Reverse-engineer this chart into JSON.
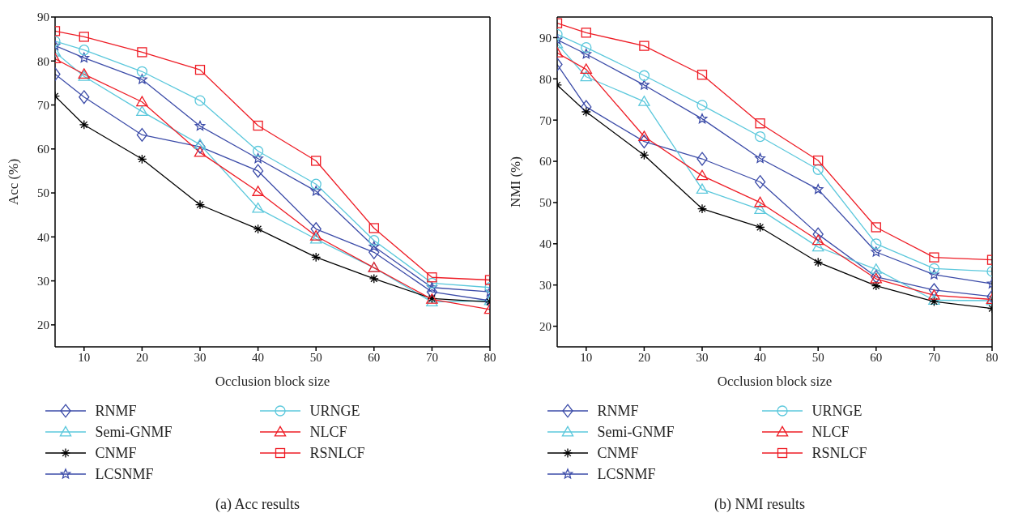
{
  "chart_data": [
    {
      "type": "line",
      "title": "(a) Acc results",
      "xlabel": "Occlusion block size",
      "ylabel": "Acc (%)",
      "x": [
        5,
        10,
        20,
        30,
        40,
        50,
        60,
        70,
        80
      ],
      "xlim": [
        5,
        80
      ],
      "xticks": [
        10,
        20,
        30,
        40,
        50,
        60,
        70,
        80
      ],
      "ylim": [
        15,
        90
      ],
      "yticks": [
        20,
        30,
        40,
        50,
        60,
        70,
        80,
        90
      ],
      "grid": false,
      "legend": "bottom",
      "series": [
        {
          "name": "RNMF",
          "color": "#3b4ba8",
          "marker": "diamond",
          "values": [
            77,
            71.8,
            63.2,
            60.5,
            55,
            41.8,
            36.5,
            27.5,
            25.5
          ]
        },
        {
          "name": "Semi-GNMF",
          "color": "#5bc8dc",
          "marker": "triangle",
          "values": [
            82,
            76.5,
            68.5,
            61,
            46.5,
            39.5,
            33,
            25.2,
            25.5
          ]
        },
        {
          "name": "CNMF",
          "color": "#000000",
          "marker": "cross",
          "values": [
            72,
            65.5,
            57.7,
            47.3,
            41.8,
            35.4,
            30.5,
            26,
            25.2
          ]
        },
        {
          "name": "LCSNMF",
          "color": "#3b4ba8",
          "marker": "star",
          "values": [
            83.5,
            80.7,
            75.8,
            65.2,
            57.8,
            50.4,
            37.8,
            28.5,
            27.5
          ]
        },
        {
          "name": "URNGE",
          "color": "#5bc8dc",
          "marker": "circle",
          "values": [
            84.5,
            82.5,
            77.6,
            71,
            59.5,
            52,
            39.2,
            29.5,
            28.5
          ]
        },
        {
          "name": "NLCF",
          "color": "#ee1c25",
          "marker": "triangle",
          "values": [
            80.5,
            77,
            70.7,
            59.2,
            50.3,
            40.2,
            33,
            25.8,
            23.5
          ]
        },
        {
          "name": "RSNLCF",
          "color": "#ee1c25",
          "marker": "square",
          "values": [
            86.8,
            85.5,
            82,
            78,
            65.3,
            57.3,
            42,
            30.8,
            30.2
          ]
        }
      ]
    },
    {
      "type": "line",
      "title": "(b) NMI results",
      "xlabel": "Occlusion block size",
      "ylabel": "NMI (%)",
      "x": [
        5,
        10,
        20,
        30,
        40,
        50,
        60,
        70,
        80
      ],
      "xlim": [
        5,
        80
      ],
      "xticks": [
        10,
        20,
        30,
        40,
        50,
        60,
        70,
        80
      ],
      "ylim": [
        15,
        95
      ],
      "yticks": [
        20,
        30,
        40,
        50,
        60,
        70,
        80,
        90
      ],
      "grid": false,
      "legend": "bottom",
      "series": [
        {
          "name": "RNMF",
          "color": "#3b4ba8",
          "marker": "diamond",
          "values": [
            83.5,
            73.2,
            64.8,
            60.6,
            55,
            42.3,
            32,
            28.8,
            27.2
          ]
        },
        {
          "name": "Semi-GNMF",
          "color": "#5bc8dc",
          "marker": "triangle",
          "values": [
            88.5,
            80.5,
            74.5,
            53.2,
            48.3,
            39.2,
            33.8,
            26.3,
            26.2
          ]
        },
        {
          "name": "CNMF",
          "color": "#000000",
          "marker": "cross",
          "values": [
            78.5,
            72,
            61.5,
            48.5,
            44,
            35.5,
            29.8,
            26,
            24.3
          ]
        },
        {
          "name": "LCSNMF",
          "color": "#3b4ba8",
          "marker": "star",
          "values": [
            89.5,
            86,
            78.5,
            70.3,
            60.7,
            53.2,
            38,
            32.5,
            30.3
          ]
        },
        {
          "name": "URNGE",
          "color": "#5bc8dc",
          "marker": "circle",
          "values": [
            90.8,
            87.6,
            80.8,
            73.6,
            66,
            58,
            40,
            34,
            33.3
          ]
        },
        {
          "name": "NLCF",
          "color": "#ee1c25",
          "marker": "triangle",
          "values": [
            86.3,
            82.3,
            66,
            56.5,
            50,
            40.8,
            31.5,
            27.5,
            26.5
          ]
        },
        {
          "name": "RSNLCF",
          "color": "#ee1c25",
          "marker": "square",
          "values": [
            93.5,
            91.2,
            88,
            81,
            69.2,
            60.2,
            44,
            36.7,
            36.1
          ]
        }
      ]
    }
  ]
}
